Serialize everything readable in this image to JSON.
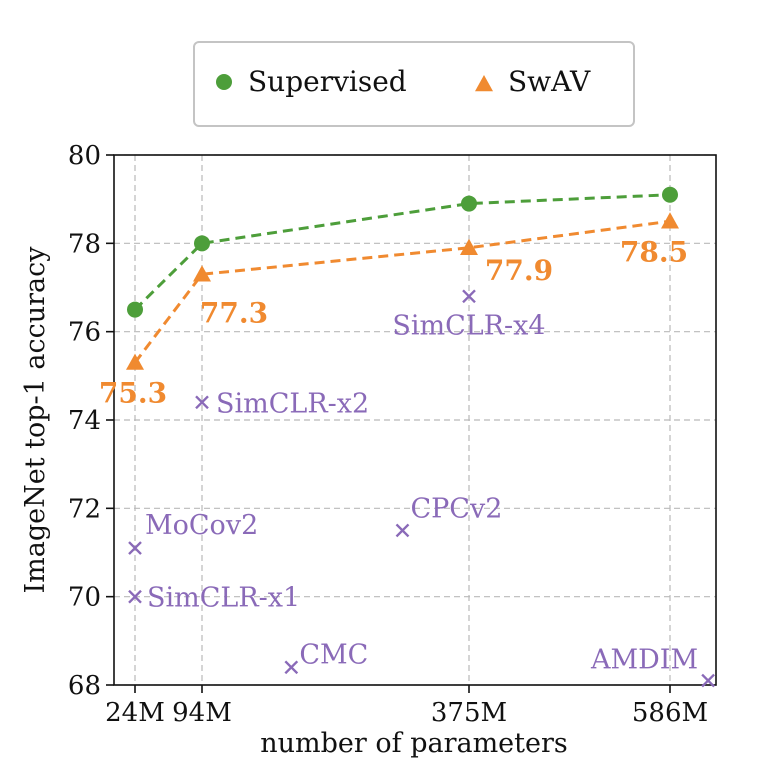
{
  "chart_data": {
    "type": "scatter",
    "xlabel": "number of parameters",
    "ylabel": "ImageNet top-1 accuracy",
    "ylim": [
      68,
      80
    ],
    "yticks": [
      68,
      70,
      72,
      74,
      76,
      78,
      80
    ],
    "xticks": [
      {
        "value": 24,
        "label": "24M"
      },
      {
        "value": 94,
        "label": "94M"
      },
      {
        "value": 375,
        "label": "375M"
      },
      {
        "value": 586,
        "label": "586M"
      }
    ],
    "xlim": [
      24,
      626
    ],
    "grid": true,
    "legend": {
      "placement": "top-center",
      "entries": [
        "Supervised",
        "SwAV"
      ]
    },
    "series": [
      {
        "name": "Supervised",
        "color": "#4d9e3a",
        "marker": "circle",
        "linestyle": "dashed",
        "x": [
          24,
          94,
          375,
          586
        ],
        "y": [
          76.5,
          78.0,
          78.9,
          79.1
        ],
        "labels": [
          "",
          "",
          "",
          ""
        ]
      },
      {
        "name": "SwAV",
        "color": "#f08a30",
        "marker": "triangle",
        "linestyle": "dashed",
        "x": [
          24,
          94,
          375,
          586
        ],
        "y": [
          75.3,
          77.3,
          77.9,
          78.5
        ],
        "labels": [
          "75.3",
          "77.3",
          "77.9",
          "78.5"
        ]
      }
    ],
    "others": {
      "color": "#8a6ab8",
      "marker": "x",
      "points": [
        {
          "name": "SimCLR-x4",
          "x": 375,
          "y": 76.8
        },
        {
          "name": "SimCLR-x2",
          "x": 94,
          "y": 74.4
        },
        {
          "name": "CPCv2",
          "x": 305,
          "y": 71.5
        },
        {
          "name": "MoCov2",
          "x": 24,
          "y": 71.1
        },
        {
          "name": "SimCLR-x1",
          "x": 24,
          "y": 70.0
        },
        {
          "name": "CMC",
          "x": 188,
          "y": 68.4
        },
        {
          "name": "AMDIM",
          "x": 626,
          "y": 68.1
        }
      ]
    }
  }
}
